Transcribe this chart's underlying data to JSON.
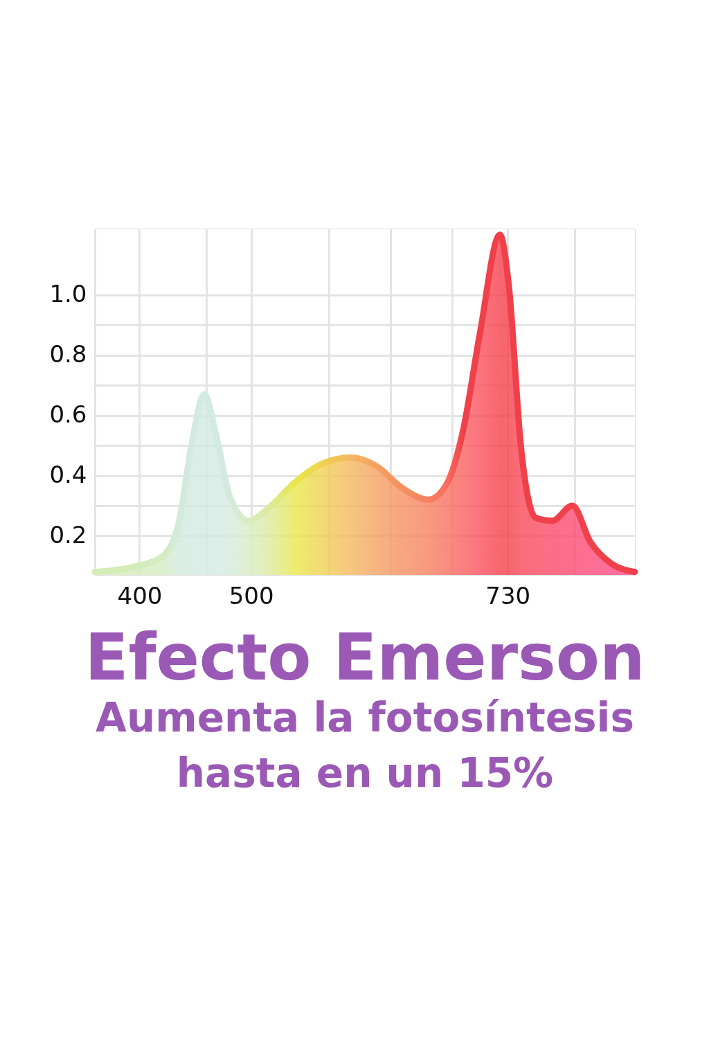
{
  "chart_data": {
    "type": "area",
    "title": "Efecto Emerson",
    "subtitle": "Aumenta la fotosíntesis\nhasta en un 15%",
    "xlim": [
      360,
      844
    ],
    "ylim": [
      0.07,
      1.22
    ],
    "xticks": [
      400,
      {
        "value": 460,
        "label": null
      },
      500,
      {
        "value": 570,
        "label": null
      },
      {
        "value": 625,
        "label": null
      },
      {
        "value": 680,
        "label": null
      },
      730,
      {
        "value": 790,
        "label": null
      }
    ],
    "yticks": [
      0.2,
      {
        "value": 0.3,
        "label": null
      },
      0.4,
      {
        "value": 0.5,
        "label": null
      },
      0.6,
      {
        "value": 0.7,
        "label": null
      },
      0.8,
      {
        "value": 0.9,
        "label": null
      },
      {
        "value": 1.0,
        "label": "1.0"
      }
    ],
    "grid": true,
    "series": [
      {
        "color": "#f0404a",
        "x": [
          360,
          392,
          420,
          435,
          447,
          458,
          469,
          481,
          498,
          515,
          540,
          564,
          589,
          613,
          635,
          659,
          675,
          690,
          705,
          723,
          731,
          742,
          755,
          770,
          788,
          804,
          822,
          844
        ],
        "values": [
          0.08,
          0.095,
          0.13,
          0.24,
          0.51,
          0.67,
          0.53,
          0.33,
          0.25,
          0.29,
          0.38,
          0.44,
          0.46,
          0.43,
          0.36,
          0.32,
          0.37,
          0.55,
          0.87,
          1.2,
          1.03,
          0.49,
          0.26,
          0.25,
          0.3,
          0.18,
          0.11,
          0.08
        ],
        "colors": [
          "#d4ecb8",
          "#d4ecb8",
          "#d4ecc0",
          "#d2eadc",
          "#d2eae0",
          "#d2eae4",
          "#d2eae4",
          "#d4eade",
          "#d8ecc0",
          "#dce9a0",
          "#e8e84a",
          "#f0d050",
          "#f4b860",
          "#f4a060",
          "#f59060",
          "#f78060",
          "#f87060",
          "#fa6060",
          "#fb5060",
          "#f5404a",
          "#f5404a",
          "#f84858",
          "#fa4a60",
          "#fb4a68",
          "#fc4a70",
          "#fd4a78",
          "#fe4a80",
          "#ff4a88"
        ]
      }
    ]
  }
}
